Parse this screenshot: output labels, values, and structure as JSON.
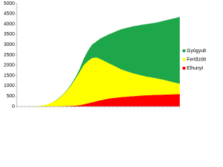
{
  "chart_data": {
    "type": "area",
    "stacked": true,
    "categories": [
      null,
      null,
      null,
      null,
      null,
      null,
      null,
      null,
      null,
      null,
      null,
      null,
      null,
      null,
      null,
      null,
      null,
      null,
      null,
      null,
      null,
      null,
      null,
      null,
      null,
      null,
      null,
      null,
      null,
      null,
      null,
      null,
      null,
      null,
      null,
      null,
      null,
      null,
      null,
      null
    ],
    "series": [
      {
        "name": "Elhunyt",
        "color": "#ff0000",
        "values": [
          0,
          0,
          0,
          0,
          0,
          0,
          1,
          2,
          3,
          5,
          8,
          12,
          18,
          28,
          40,
          65,
          100,
          150,
          200,
          250,
          300,
          340,
          380,
          410,
          430,
          450,
          470,
          485,
          500,
          515,
          530,
          540,
          550,
          560,
          565,
          570,
          580,
          585,
          592,
          600
        ]
      },
      {
        "name": "Fertőzött",
        "color": "#ffff00",
        "values": [
          0,
          0,
          2,
          5,
          10,
          20,
          39,
          78,
          147,
          235,
          372,
          548,
          752,
          1002,
          1290,
          1585,
          1900,
          2050,
          2150,
          2130,
          2000,
          1860,
          1720,
          1590,
          1470,
          1350,
          1260,
          1175,
          1100,
          1035,
          970,
          910,
          870,
          820,
          775,
          730,
          670,
          615,
          558,
          500
        ]
      },
      {
        "name": "Gyógyult",
        "color": "#1ea64a",
        "values": [
          0,
          0,
          0,
          0,
          0,
          0,
          0,
          0,
          0,
          10,
          20,
          20,
          30,
          50,
          70,
          150,
          300,
          500,
          650,
          770,
          1000,
          1200,
          1400,
          1580,
          1770,
          1950,
          2070,
          2190,
          2300,
          2380,
          2470,
          2550,
          2610,
          2680,
          2760,
          2850,
          2950,
          3050,
          3150,
          3250
        ]
      }
    ],
    "ylim": [
      0,
      5000
    ],
    "yticks": [
      0,
      500,
      1000,
      1500,
      2000,
      2500,
      3000,
      3500,
      4000,
      4500,
      5000
    ],
    "grid": false,
    "legend": "right"
  }
}
